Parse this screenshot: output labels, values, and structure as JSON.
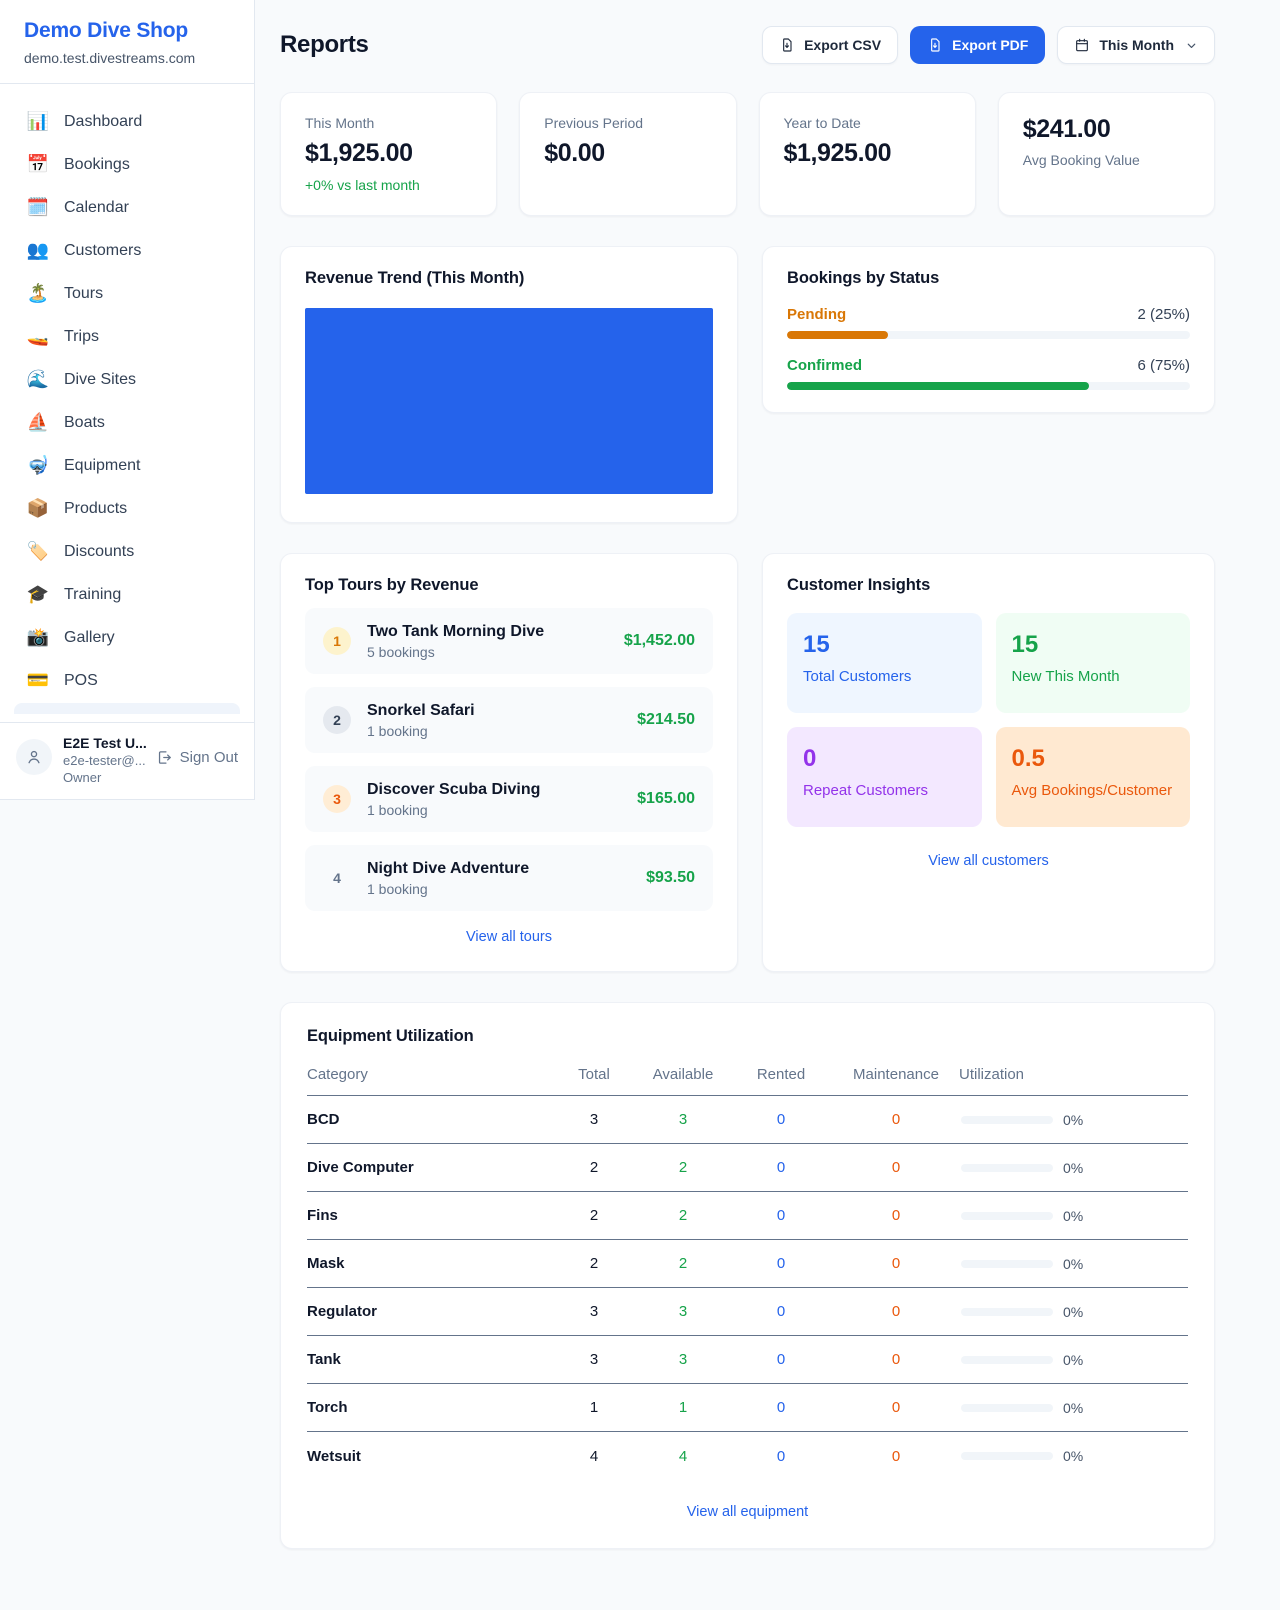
{
  "colors": {
    "accent_blue": "#2563eb",
    "green": "#16a34a",
    "pending_orange": "#d97706",
    "maintenance_orange": "#ea580c",
    "purple": "#9333ea"
  },
  "sidebar": {
    "shop_name": "Demo Dive Shop",
    "shop_domain": "demo.test.divestreams.com",
    "items": [
      {
        "icon_name": "bar-chart-icon",
        "icon": "📊",
        "label": "Dashboard"
      },
      {
        "icon_name": "calendar-icon",
        "icon": "📅",
        "label": "Bookings"
      },
      {
        "icon_name": "spiral-calendar-icon",
        "icon": "🗓️",
        "label": "Calendar"
      },
      {
        "icon_name": "users-icon",
        "icon": "👥",
        "label": "Customers"
      },
      {
        "icon_name": "island-icon",
        "icon": "🏝️",
        "label": "Tours"
      },
      {
        "icon_name": "speedboat-icon",
        "icon": "🚤",
        "label": "Trips"
      },
      {
        "icon_name": "wave-icon",
        "icon": "🌊",
        "label": "Dive Sites"
      },
      {
        "icon_name": "sailboat-icon",
        "icon": "⛵",
        "label": "Boats"
      },
      {
        "icon_name": "diving-mask-icon",
        "icon": "🤿",
        "label": "Equipment"
      },
      {
        "icon_name": "package-icon",
        "icon": "📦",
        "label": "Products"
      },
      {
        "icon_name": "tag-icon",
        "icon": "🏷️",
        "label": "Discounts"
      },
      {
        "icon_name": "graduation-cap-icon",
        "icon": "🎓",
        "label": "Training"
      },
      {
        "icon_name": "camera-icon",
        "icon": "📸",
        "label": "Gallery"
      },
      {
        "icon_name": "credit-card-icon",
        "icon": "💳",
        "label": "POS"
      }
    ],
    "user": {
      "name": "E2E Test U...",
      "email": "e2e-tester@...",
      "role": "Owner",
      "sign_out_label": "Sign Out"
    }
  },
  "header": {
    "title": "Reports",
    "export_csv_label": "Export CSV",
    "export_pdf_label": "Export PDF",
    "period_label": "This Month"
  },
  "stats": [
    {
      "label": "This Month",
      "value": "$1,925.00",
      "delta": "+0% vs last month"
    },
    {
      "label": "Previous Period",
      "value": "$0.00"
    },
    {
      "label": "Year to Date",
      "value": "$1,925.00"
    },
    {
      "label": "Avg Booking Value",
      "value": "$241.00"
    }
  ],
  "revenue_trend": {
    "title": "Revenue Trend (This Month)",
    "bar_color": "#2563eb",
    "bar_fill_percent": 100
  },
  "bookings_by_status": {
    "title": "Bookings by Status",
    "rows": [
      {
        "label": "Pending",
        "value": "2 (25%)",
        "percent": 25,
        "color": "#d97706"
      },
      {
        "label": "Confirmed",
        "value": "6 (75%)",
        "percent": 75,
        "color": "#16a34a"
      }
    ]
  },
  "top_tours": {
    "title": "Top Tours by Revenue",
    "rows": [
      {
        "rank": "1",
        "name": "Two Tank Morning Dive",
        "sub": "5 bookings",
        "amount": "$1,452.00"
      },
      {
        "rank": "2",
        "name": "Snorkel Safari",
        "sub": "1 booking",
        "amount": "$214.50"
      },
      {
        "rank": "3",
        "name": "Discover Scuba Diving",
        "sub": "1 booking",
        "amount": "$165.00"
      },
      {
        "rank": "4",
        "name": "Night Dive Adventure",
        "sub": "1 booking",
        "amount": "$93.50"
      }
    ],
    "view_all_label": "View all tours"
  },
  "customer_insights": {
    "title": "Customer Insights",
    "tiles": [
      {
        "value": "15",
        "label": "Total Customers"
      },
      {
        "value": "15",
        "label": "New This Month"
      },
      {
        "value": "0",
        "label": "Repeat Customers"
      },
      {
        "value": "0.5",
        "label": "Avg Bookings/Customer"
      }
    ],
    "view_all_label": "View all customers"
  },
  "equipment": {
    "title": "Equipment Utilization",
    "columns": [
      "Category",
      "Total",
      "Available",
      "Rented",
      "Maintenance",
      "Utilization"
    ],
    "rows": [
      {
        "category": "BCD",
        "total": "3",
        "available": "3",
        "rented": "0",
        "maintenance": "0",
        "utilization": "0%",
        "percent": 0
      },
      {
        "category": "Dive Computer",
        "total": "2",
        "available": "2",
        "rented": "0",
        "maintenance": "0",
        "utilization": "0%",
        "percent": 0
      },
      {
        "category": "Fins",
        "total": "2",
        "available": "2",
        "rented": "0",
        "maintenance": "0",
        "utilization": "0%",
        "percent": 0
      },
      {
        "category": "Mask",
        "total": "2",
        "available": "2",
        "rented": "0",
        "maintenance": "0",
        "utilization": "0%",
        "percent": 0
      },
      {
        "category": "Regulator",
        "total": "3",
        "available": "3",
        "rented": "0",
        "maintenance": "0",
        "utilization": "0%",
        "percent": 0
      },
      {
        "category": "Tank",
        "total": "3",
        "available": "3",
        "rented": "0",
        "maintenance": "0",
        "utilization": "0%",
        "percent": 0
      },
      {
        "category": "Torch",
        "total": "1",
        "available": "1",
        "rented": "0",
        "maintenance": "0",
        "utilization": "0%",
        "percent": 0
      },
      {
        "category": "Wetsuit",
        "total": "4",
        "available": "4",
        "rented": "0",
        "maintenance": "0",
        "utilization": "0%",
        "percent": 0
      }
    ],
    "view_all_label": "View all equipment"
  }
}
